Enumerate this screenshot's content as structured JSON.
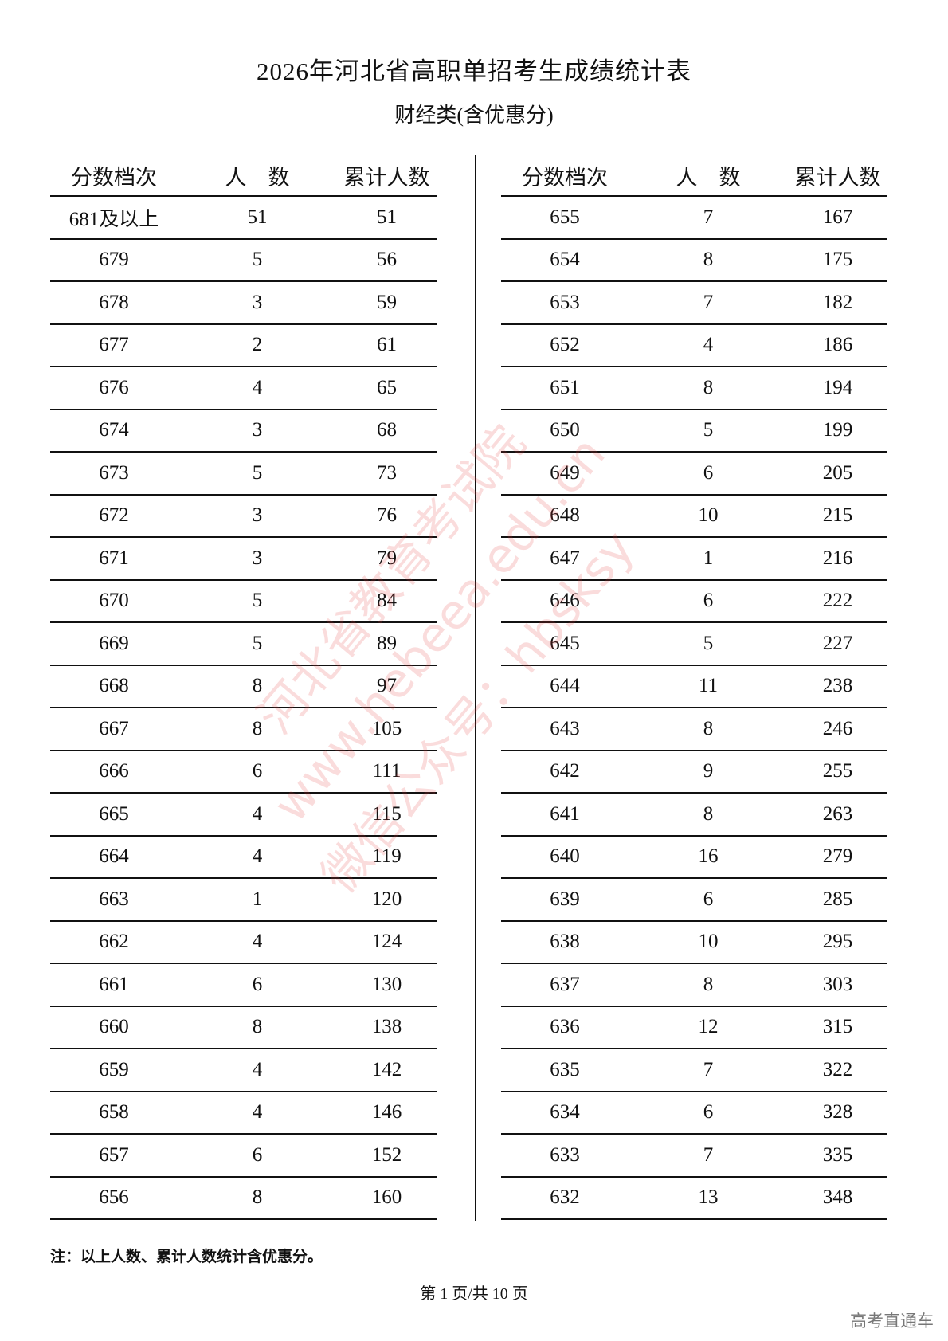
{
  "title": "2026年河北省高职单招考生成绩统计表",
  "subtitle": "财经类(含优惠分)",
  "headers": {
    "score": "分数档次",
    "count": "人　数",
    "cumulative": "累计人数"
  },
  "left_rows": [
    [
      "681及以上",
      "51",
      "51"
    ],
    [
      "679",
      "5",
      "56"
    ],
    [
      "678",
      "3",
      "59"
    ],
    [
      "677",
      "2",
      "61"
    ],
    [
      "676",
      "4",
      "65"
    ],
    [
      "674",
      "3",
      "68"
    ],
    [
      "673",
      "5",
      "73"
    ],
    [
      "672",
      "3",
      "76"
    ],
    [
      "671",
      "3",
      "79"
    ],
    [
      "670",
      "5",
      "84"
    ],
    [
      "669",
      "5",
      "89"
    ],
    [
      "668",
      "8",
      "97"
    ],
    [
      "667",
      "8",
      "105"
    ],
    [
      "666",
      "6",
      "111"
    ],
    [
      "665",
      "4",
      "115"
    ],
    [
      "664",
      "4",
      "119"
    ],
    [
      "663",
      "1",
      "120"
    ],
    [
      "662",
      "4",
      "124"
    ],
    [
      "661",
      "6",
      "130"
    ],
    [
      "660",
      "8",
      "138"
    ],
    [
      "659",
      "4",
      "142"
    ],
    [
      "658",
      "4",
      "146"
    ],
    [
      "657",
      "6",
      "152"
    ],
    [
      "656",
      "8",
      "160"
    ]
  ],
  "right_rows": [
    [
      "655",
      "7",
      "167"
    ],
    [
      "654",
      "8",
      "175"
    ],
    [
      "653",
      "7",
      "182"
    ],
    [
      "652",
      "4",
      "186"
    ],
    [
      "651",
      "8",
      "194"
    ],
    [
      "650",
      "5",
      "199"
    ],
    [
      "649",
      "6",
      "205"
    ],
    [
      "648",
      "10",
      "215"
    ],
    [
      "647",
      "1",
      "216"
    ],
    [
      "646",
      "6",
      "222"
    ],
    [
      "645",
      "5",
      "227"
    ],
    [
      "644",
      "11",
      "238"
    ],
    [
      "643",
      "8",
      "246"
    ],
    [
      "642",
      "9",
      "255"
    ],
    [
      "641",
      "8",
      "263"
    ],
    [
      "640",
      "16",
      "279"
    ],
    [
      "639",
      "6",
      "285"
    ],
    [
      "638",
      "10",
      "295"
    ],
    [
      "637",
      "8",
      "303"
    ],
    [
      "636",
      "12",
      "315"
    ],
    [
      "635",
      "7",
      "322"
    ],
    [
      "634",
      "6",
      "328"
    ],
    [
      "633",
      "7",
      "335"
    ],
    [
      "632",
      "13",
      "348"
    ]
  ],
  "note": "注：以上人数、累计人数统计含优惠分。",
  "page_indicator": "第 1 页/共 10 页",
  "brand": "高考直通车",
  "watermark": [
    "河北省教育考试院",
    "www.hebeea.edu.cn",
    "微信公众号：hbsksy"
  ],
  "watermark_color": "#e63c3c"
}
